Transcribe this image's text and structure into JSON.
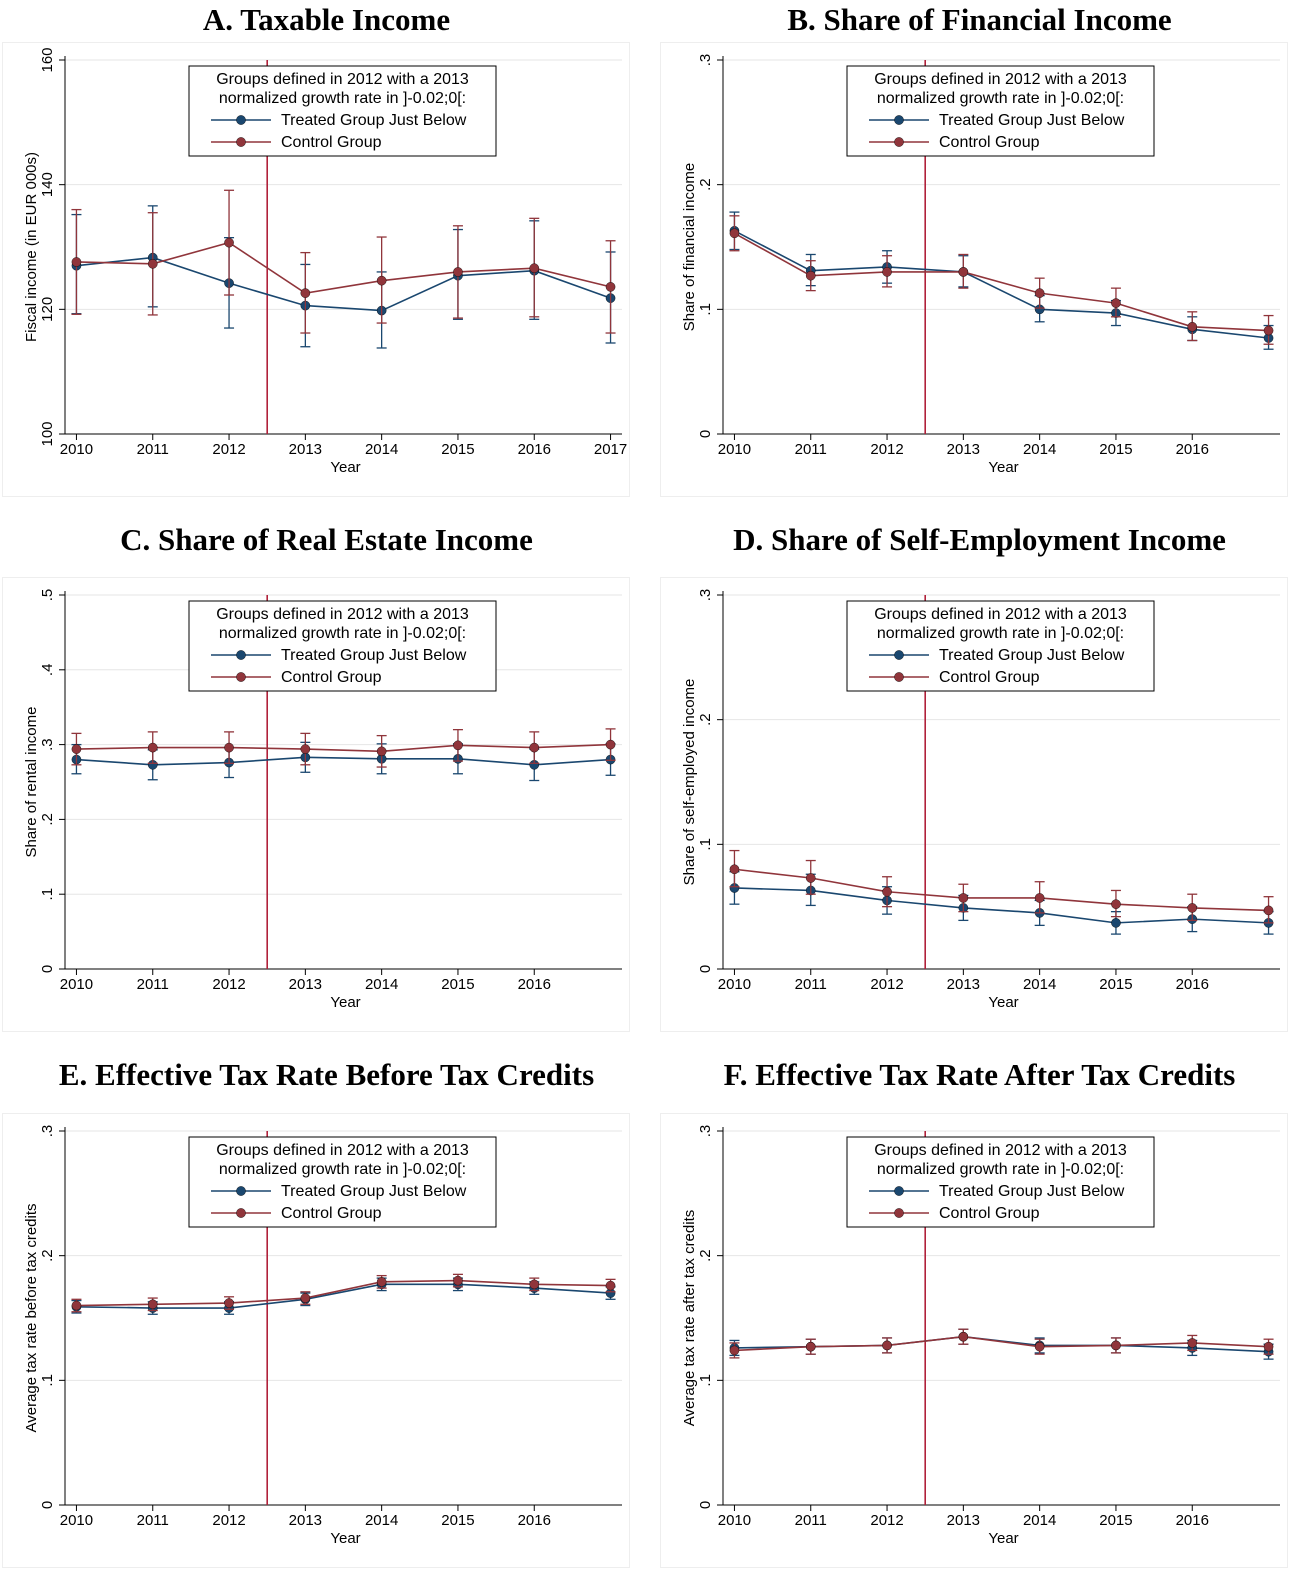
{
  "colors": {
    "treated": "#1a476f",
    "control": "#90353b",
    "vline": "#b0213a",
    "grid": "#e6e6e6",
    "frame": "#eeeeee"
  },
  "legend": {
    "line1": "Groups defined in 2012 with a  2013",
    "line2": "normalized growth rate in ]-0.02;0[:",
    "treated_label": "Treated Group Just Below",
    "control_label": "Control Group"
  },
  "chart_data": [
    {
      "type": "line",
      "title": "A. Taxable Income",
      "xlabel": "Year",
      "ylabel": "Fiscal income (in EUR 000s)",
      "x": [
        2010,
        2011,
        2012,
        2013,
        2014,
        2015,
        2016,
        2017
      ],
      "xticks": [
        "2010",
        "2011",
        "2012",
        "2013",
        "2014",
        "2015",
        "2016",
        "2017"
      ],
      "xlim": [
        2009.85,
        2017.15
      ],
      "ylim": [
        100,
        160
      ],
      "yticks": [
        100,
        120,
        140,
        160
      ],
      "yticklabels": [
        "100",
        "120",
        "140",
        "160"
      ],
      "vline": 2012.5,
      "series": [
        {
          "name": "Treated Group Just Below",
          "values": [
            127,
            128.3,
            124.2,
            120.6,
            119.8,
            125.4,
            126.2,
            121.8
          ],
          "lower": [
            119.3,
            120.4,
            117,
            114,
            113.8,
            118.4,
            118.4,
            114.6
          ],
          "upper": [
            135.2,
            136.6,
            131.5,
            127.2,
            126,
            132.8,
            134.2,
            129.2
          ]
        },
        {
          "name": "Control Group",
          "values": [
            127.6,
            127.3,
            130.7,
            122.6,
            124.6,
            126,
            126.6,
            123.6
          ],
          "lower": [
            119.2,
            119.1,
            122.3,
            116.2,
            117.8,
            118.6,
            118.8,
            116.2
          ],
          "upper": [
            136,
            135.5,
            139.1,
            129.1,
            131.6,
            133.4,
            134.6,
            131
          ]
        }
      ]
    },
    {
      "type": "line",
      "title": "B. Share of Financial Income",
      "xlabel": "Year",
      "ylabel": "Share of financial income",
      "x": [
        2010,
        2011,
        2012,
        2013,
        2014,
        2015,
        2016,
        2017
      ],
      "xticks": [
        "2010",
        "2011",
        "2012",
        "2013",
        "2014",
        "2015",
        "2016"
      ],
      "xlim": [
        2009.85,
        2017.15
      ],
      "ylim": [
        0,
        0.3
      ],
      "yticks": [
        0,
        0.1,
        0.2,
        0.3
      ],
      "yticklabels": [
        "0",
        ".1",
        ".2",
        ".3"
      ],
      "vline": 2012.5,
      "series": [
        {
          "name": "Treated Group Just Below",
          "values": [
            0.163,
            0.131,
            0.134,
            0.13,
            0.1,
            0.097,
            0.084,
            0.077
          ],
          "lower": [
            0.148,
            0.119,
            0.121,
            0.118,
            0.09,
            0.087,
            0.075,
            0.068
          ],
          "upper": [
            0.178,
            0.144,
            0.147,
            0.143,
            0.111,
            0.107,
            0.094,
            0.087
          ]
        },
        {
          "name": "Control Group",
          "values": [
            0.161,
            0.127,
            0.13,
            0.13,
            0.113,
            0.105,
            0.086,
            0.083
          ],
          "lower": [
            0.147,
            0.115,
            0.118,
            0.117,
            0.101,
            0.094,
            0.075,
            0.072
          ],
          "upper": [
            0.175,
            0.139,
            0.143,
            0.144,
            0.125,
            0.117,
            0.098,
            0.095
          ]
        }
      ]
    },
    {
      "type": "line",
      "title": "C. Share of Real Estate Income",
      "xlabel": "Year",
      "ylabel": "Share of rental income",
      "x": [
        2010,
        2011,
        2012,
        2013,
        2014,
        2015,
        2016,
        2017
      ],
      "xticks": [
        "2010",
        "2011",
        "2012",
        "2013",
        "2014",
        "2015",
        "2016"
      ],
      "xlim": [
        2009.85,
        2017.15
      ],
      "ylim": [
        0,
        0.5
      ],
      "yticks": [
        0,
        0.1,
        0.2,
        0.3,
        0.4,
        0.5
      ],
      "yticklabels": [
        "0",
        ".1",
        ".2",
        ".3",
        ".4",
        ".5"
      ],
      "vline": 2012.5,
      "series": [
        {
          "name": "Treated Group Just Below",
          "values": [
            0.28,
            0.273,
            0.276,
            0.283,
            0.281,
            0.281,
            0.273,
            0.28
          ],
          "lower": [
            0.261,
            0.253,
            0.256,
            0.263,
            0.261,
            0.261,
            0.252,
            0.259
          ],
          "upper": [
            0.3,
            0.293,
            0.296,
            0.303,
            0.301,
            0.301,
            0.294,
            0.301
          ]
        },
        {
          "name": "Control Group",
          "values": [
            0.294,
            0.296,
            0.296,
            0.294,
            0.291,
            0.299,
            0.296,
            0.3
          ],
          "lower": [
            0.273,
            0.275,
            0.275,
            0.273,
            0.27,
            0.278,
            0.275,
            0.279
          ],
          "upper": [
            0.315,
            0.317,
            0.317,
            0.315,
            0.312,
            0.32,
            0.317,
            0.321
          ]
        }
      ]
    },
    {
      "type": "line",
      "title": "D. Share of Self-Employment Income",
      "xlabel": "Year",
      "ylabel": "Share of self-employed income",
      "x": [
        2010,
        2011,
        2012,
        2013,
        2014,
        2015,
        2016,
        2017
      ],
      "xticks": [
        "2010",
        "2011",
        "2012",
        "2013",
        "2014",
        "2015",
        "2016"
      ],
      "xlim": [
        2009.85,
        2017.15
      ],
      "ylim": [
        0,
        0.3
      ],
      "yticks": [
        0,
        0.1,
        0.2,
        0.3
      ],
      "yticklabels": [
        "0",
        ".1",
        ".2",
        ".3"
      ],
      "vline": 2012.5,
      "series": [
        {
          "name": "Treated Group Just Below",
          "values": [
            0.065,
            0.063,
            0.055,
            0.049,
            0.045,
            0.037,
            0.04,
            0.037
          ],
          "lower": [
            0.052,
            0.051,
            0.044,
            0.039,
            0.035,
            0.028,
            0.03,
            0.028
          ],
          "upper": [
            0.078,
            0.076,
            0.066,
            0.059,
            0.055,
            0.046,
            0.05,
            0.046
          ]
        },
        {
          "name": "Control Group",
          "values": [
            0.08,
            0.073,
            0.062,
            0.057,
            0.057,
            0.052,
            0.049,
            0.047
          ],
          "lower": [
            0.066,
            0.06,
            0.05,
            0.046,
            0.045,
            0.042,
            0.039,
            0.037
          ],
          "upper": [
            0.095,
            0.087,
            0.074,
            0.068,
            0.07,
            0.063,
            0.06,
            0.058
          ]
        }
      ]
    },
    {
      "type": "line",
      "title": "E. Effective Tax Rate Before Tax Credits",
      "xlabel": "Year",
      "ylabel": "Average tax rate before tax credits",
      "x": [
        2010,
        2011,
        2012,
        2013,
        2014,
        2015,
        2016,
        2017
      ],
      "xticks": [
        "2010",
        "2011",
        "2012",
        "2013",
        "2014",
        "2015",
        "2016"
      ],
      "xlim": [
        2009.85,
        2017.15
      ],
      "ylim": [
        0,
        0.3
      ],
      "yticks": [
        0,
        0.1,
        0.2,
        0.3
      ],
      "yticklabels": [
        "0",
        ".1",
        ".2",
        ".3"
      ],
      "vline": 2012.5,
      "series": [
        {
          "name": "Treated Group Just Below",
          "values": [
            0.159,
            0.158,
            0.158,
            0.165,
            0.177,
            0.177,
            0.174,
            0.17
          ],
          "lower": [
            0.154,
            0.153,
            0.153,
            0.16,
            0.172,
            0.172,
            0.169,
            0.165
          ],
          "upper": [
            0.164,
            0.163,
            0.163,
            0.17,
            0.182,
            0.182,
            0.179,
            0.175
          ]
        },
        {
          "name": "Control Group",
          "values": [
            0.16,
            0.161,
            0.162,
            0.166,
            0.179,
            0.18,
            0.177,
            0.176
          ],
          "lower": [
            0.155,
            0.156,
            0.157,
            0.161,
            0.174,
            0.175,
            0.172,
            0.171
          ],
          "upper": [
            0.165,
            0.166,
            0.167,
            0.171,
            0.184,
            0.185,
            0.182,
            0.181
          ]
        }
      ]
    },
    {
      "type": "line",
      "title": "F. Effective Tax Rate After Tax Credits",
      "xlabel": "Year",
      "ylabel": "Average tax rate after tax credits",
      "x": [
        2010,
        2011,
        2012,
        2013,
        2014,
        2015,
        2016,
        2017
      ],
      "xticks": [
        "2010",
        "2011",
        "2012",
        "2013",
        "2014",
        "2015",
        "2016"
      ],
      "xlim": [
        2009.85,
        2017.15
      ],
      "ylim": [
        0,
        0.3
      ],
      "yticks": [
        0,
        0.1,
        0.2,
        0.3
      ],
      "yticklabels": [
        "0",
        ".1",
        ".2",
        ".3"
      ],
      "vline": 2012.5,
      "series": [
        {
          "name": "Treated Group Just Below",
          "values": [
            0.126,
            0.127,
            0.128,
            0.135,
            0.128,
            0.128,
            0.126,
            0.123
          ],
          "lower": [
            0.12,
            0.121,
            0.122,
            0.129,
            0.122,
            0.122,
            0.12,
            0.117
          ],
          "upper": [
            0.132,
            0.133,
            0.134,
            0.141,
            0.134,
            0.134,
            0.132,
            0.129
          ]
        },
        {
          "name": "Control Group",
          "values": [
            0.124,
            0.127,
            0.128,
            0.135,
            0.127,
            0.128,
            0.13,
            0.127
          ],
          "lower": [
            0.118,
            0.121,
            0.122,
            0.129,
            0.121,
            0.122,
            0.124,
            0.121
          ],
          "upper": [
            0.13,
            0.133,
            0.134,
            0.141,
            0.133,
            0.134,
            0.136,
            0.133
          ]
        }
      ]
    }
  ]
}
